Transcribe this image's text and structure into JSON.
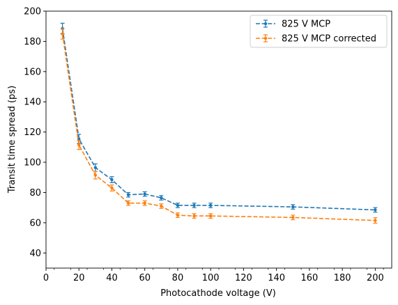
{
  "chart_data": {
    "type": "line",
    "title": "",
    "xlabel": "Photocathode voltage (V)",
    "ylabel": "Transit time spread (ps)",
    "xlim": [
      0,
      210
    ],
    "ylim": [
      30,
      200
    ],
    "xticks": [
      0,
      20,
      40,
      60,
      80,
      100,
      120,
      140,
      160,
      180,
      200
    ],
    "yticks": [
      40,
      60,
      80,
      100,
      120,
      140,
      160,
      180,
      200
    ],
    "grid": false,
    "legend_position": "top-right",
    "x": [
      10,
      20,
      30,
      40,
      50,
      60,
      70,
      80,
      90,
      100,
      150,
      200
    ],
    "series": [
      {
        "name": "825 V MCP",
        "color": "#1f77b4",
        "linestyle": "dashed",
        "marker": "circle",
        "values": [
          188.5,
          115.5,
          96.5,
          88.5,
          78.5,
          79.0,
          76.5,
          71.5,
          71.5,
          71.5,
          70.5,
          68.5
        ],
        "errors": [
          3.5,
          3.0,
          2.5,
          2.0,
          1.5,
          1.5,
          1.5,
          1.5,
          1.5,
          1.5,
          1.5,
          1.5
        ]
      },
      {
        "name": "825 V MCP corrected",
        "color": "#ff7f0e",
        "linestyle": "dashed",
        "marker": "circle",
        "values": [
          185.0,
          111.5,
          91.5,
          83.0,
          73.0,
          73.0,
          71.0,
          65.0,
          64.5,
          64.5,
          63.5,
          61.5
        ],
        "errors": [
          3.5,
          3.0,
          2.5,
          2.0,
          1.5,
          1.5,
          1.5,
          1.5,
          1.5,
          1.5,
          1.5,
          1.8
        ]
      }
    ]
  }
}
